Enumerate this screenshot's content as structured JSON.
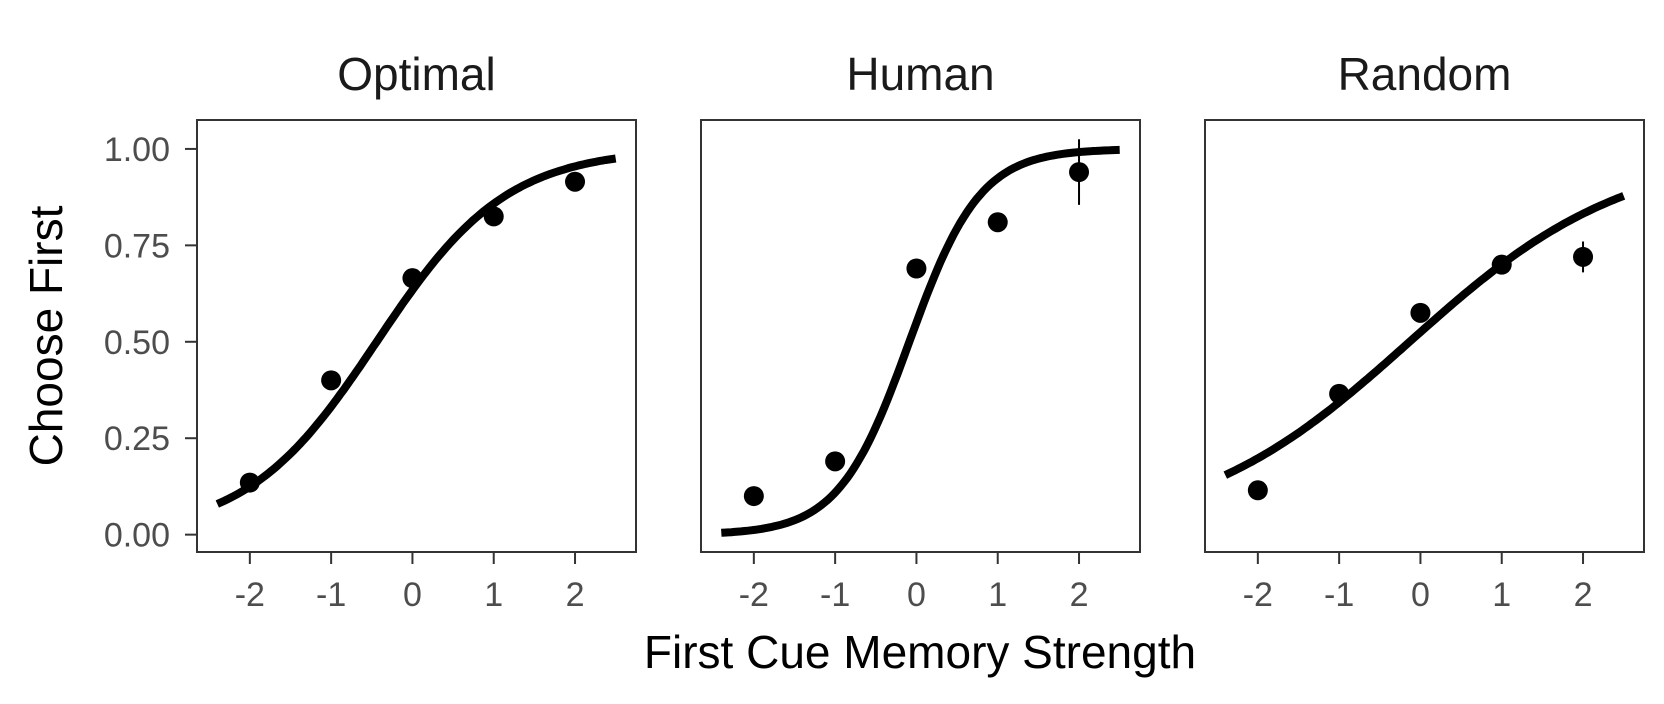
{
  "chart_data": {
    "type": "scatter",
    "xlabel": "First Cue Memory Strength",
    "ylabel": "Choose First",
    "xlim": [
      -2.65,
      2.75
    ],
    "ylim": [
      -0.045,
      1.075
    ],
    "x_ticks": [
      "-2",
      "-1",
      "0",
      "1",
      "2"
    ],
    "y_ticks": [
      "0.00",
      "0.25",
      "0.50",
      "0.75",
      "1.00"
    ],
    "grid": false,
    "legend": "none",
    "colors": {
      "marks": "#000000",
      "frame": "#333333",
      "tick_labels": "#4d4d4d"
    },
    "panels": [
      {
        "title": "Optimal",
        "fit_curve": {
          "type": "logistic",
          "intercept": 0.55,
          "slope": 1.25
        },
        "points": [
          {
            "x": -2,
            "y": 0.135,
            "err": 0.02
          },
          {
            "x": -1,
            "y": 0.4,
            "err": 0.01
          },
          {
            "x": 0,
            "y": 0.665,
            "err": 0.01
          },
          {
            "x": 1,
            "y": 0.825,
            "err": 0.01
          },
          {
            "x": 2,
            "y": 0.915,
            "err": 0.01
          }
        ]
      },
      {
        "title": "Human",
        "fit_curve": {
          "type": "logistic",
          "intercept": 0.2,
          "slope": 2.3
        },
        "points": [
          {
            "x": -2,
            "y": 0.1,
            "err": 0.02
          },
          {
            "x": -1,
            "y": 0.19,
            "err": 0.02
          },
          {
            "x": 0,
            "y": 0.69,
            "err": 0.01
          },
          {
            "x": 1,
            "y": 0.81,
            "err": 0.01
          },
          {
            "x": 2,
            "y": 0.94,
            "err": 0.085
          }
        ]
      },
      {
        "title": "Random",
        "fit_curve": {
          "type": "logistic",
          "intercept": 0.1,
          "slope": 0.75
        },
        "points": [
          {
            "x": -2,
            "y": 0.115,
            "err": 0.015
          },
          {
            "x": -1,
            "y": 0.365,
            "err": 0.015
          },
          {
            "x": 0,
            "y": 0.575,
            "err": 0.01
          },
          {
            "x": 1,
            "y": 0.7,
            "err": 0.01
          },
          {
            "x": 2,
            "y": 0.72,
            "err": 0.04
          }
        ]
      }
    ]
  }
}
